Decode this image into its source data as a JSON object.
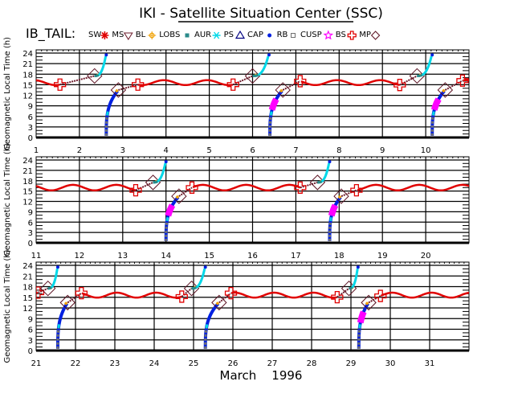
{
  "chart_data": {
    "type": "scatter",
    "title": "IKI - Satellite Situation Center (SSC)",
    "subtitle": "IB_TAIL:",
    "xlabel": "March    1996",
    "ylabel": "Geomagnetic Local Time (h)",
    "ylim": [
      0,
      24
    ],
    "yticks": [
      0,
      3,
      6,
      9,
      12,
      15,
      18,
      21,
      24
    ],
    "grid": true,
    "legend_position": "top",
    "legend": [
      {
        "label": "SW",
        "symbol": "star",
        "color": "#e00000"
      },
      {
        "label": "MS",
        "symbol": "triangle-down",
        "color": "#6b1a2a"
      },
      {
        "label": "BL",
        "symbol": "sun",
        "color": "#f0a000"
      },
      {
        "label": "LOBS",
        "symbol": "square",
        "color": "#2a8a8a"
      },
      {
        "label": "AUR",
        "symbol": "asterisk",
        "color": "#00d8e8"
      },
      {
        "label": "PS",
        "symbol": "triangle-up",
        "color": "#000080"
      },
      {
        "label": "CAP",
        "symbol": "dot",
        "color": "#0020e0"
      },
      {
        "label": "RB",
        "symbol": "square-open",
        "color": "#707070"
      },
      {
        "label": "CUSP",
        "symbol": "star-open",
        "color": "#ff00ff"
      },
      {
        "label": "BS",
        "symbol": "cross-open",
        "color": "#e00000"
      },
      {
        "label": "MP",
        "symbol": "diamond-open",
        "color": "#5a1020"
      }
    ],
    "panels": [
      {
        "name": "panel-days-1-10",
        "xlim": [
          1,
          11
        ],
        "xticks": [
          1,
          2,
          3,
          4,
          5,
          6,
          7,
          8,
          9,
          10
        ],
        "sw_wave": {
          "mean": 15.6,
          "amp": 0.7,
          "period": 1.0,
          "phase": 0.3
        },
        "passes": [
          {
            "out_start": 1.0,
            "bs_out": 1.55,
            "mp_out": 2.35,
            "spike_x": 2.62,
            "in_x": 2.62,
            "mp_in": 2.9,
            "bs_in": 3.35,
            "cusp": false
          },
          {
            "out_start": 5.0,
            "bs_out": 5.55,
            "mp_out": 6.0,
            "spike_x": 6.38,
            "in_x": 6.4,
            "mp_in": 6.7,
            "bs_in": 7.1,
            "cusp": true
          },
          {
            "out_start": 9.0,
            "bs_out": 9.4,
            "mp_out": 9.8,
            "spike_x": 10.15,
            "in_x": 10.15,
            "mp_in": 10.45,
            "bs_in": 10.85,
            "cusp": true
          }
        ]
      },
      {
        "name": "panel-days-11-20",
        "xlim": [
          11,
          21
        ],
        "xticks": [
          11,
          12,
          13,
          14,
          15,
          16,
          17,
          18,
          19,
          20
        ],
        "sw_wave": {
          "mean": 16.0,
          "amp": 0.8,
          "period": 1.0,
          "phase": 0.4
        },
        "passes": [
          {
            "out_start": 13.0,
            "bs_out": 13.3,
            "mp_out": 13.7,
            "spike_x": 14.0,
            "in_x": 14.0,
            "mp_in": 14.3,
            "bs_in": 14.6,
            "cusp": true
          },
          {
            "out_start": 17.0,
            "bs_out": 17.1,
            "mp_out": 17.5,
            "spike_x": 17.78,
            "in_x": 17.78,
            "mp_in": 18.05,
            "bs_in": 18.4,
            "cusp": true
          }
        ]
      },
      {
        "name": "panel-days-21-31",
        "xlim": [
          21,
          32
        ],
        "xticks": [
          21,
          22,
          23,
          24,
          25,
          26,
          27,
          28,
          29,
          30,
          31
        ],
        "sw_wave": {
          "mean": 15.6,
          "amp": 0.7,
          "period": 1.0,
          "phase": 0.2
        },
        "passes": [
          {
            "out_start": 21.0,
            "bs_out": 21.05,
            "mp_out": 21.3,
            "spike_x": 21.55,
            "in_x": 21.55,
            "mp_in": 21.8,
            "bs_in": 22.15,
            "cusp": false
          },
          {
            "out_start": 24.0,
            "bs_out": 24.7,
            "mp_out": 24.95,
            "spike_x": 25.3,
            "in_x": 25.3,
            "mp_in": 25.65,
            "bs_in": 25.95,
            "cusp": false
          },
          {
            "out_start": 28.0,
            "bs_out": 28.65,
            "mp_out": 28.95,
            "spike_x": 29.18,
            "in_x": 29.2,
            "mp_in": 29.45,
            "bs_in": 29.75,
            "cusp": true
          }
        ]
      }
    ]
  }
}
